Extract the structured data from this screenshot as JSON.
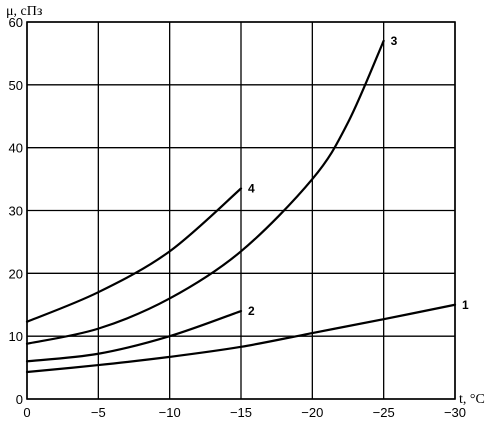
{
  "chart_data": {
    "type": "line",
    "title": "",
    "xlabel": "t, °C",
    "ylabel": "μ, сПз",
    "xlim": [
      0,
      -30
    ],
    "ylim": [
      0,
      60
    ],
    "grid": true,
    "x_ticks": [
      0,
      -5,
      -10,
      -15,
      -20,
      -25,
      -30
    ],
    "x_tick_labels": [
      "0",
      "−5",
      "−10",
      "−15",
      "−20",
      "−25",
      "−30"
    ],
    "y_ticks": [
      0,
      10,
      20,
      30,
      40,
      50,
      60
    ],
    "y_tick_labels": [
      "0",
      "10",
      "20",
      "30",
      "40",
      "50",
      "60"
    ],
    "series": [
      {
        "name": "1",
        "x": [
          0,
          -5,
          -10,
          -15,
          -20,
          -25,
          -30
        ],
        "y": [
          4.3,
          5.4,
          6.7,
          8.3,
          10.5,
          12.7,
          15.0
        ]
      },
      {
        "name": "2",
        "x": [
          0,
          -5,
          -10,
          -15
        ],
        "y": [
          6.0,
          7.2,
          10.0,
          14.0
        ]
      },
      {
        "name": "3",
        "x": [
          0,
          -5,
          -10,
          -15,
          -20,
          -22.5,
          -25
        ],
        "y": [
          8.8,
          11.2,
          16.0,
          23.5,
          35.0,
          44.0,
          57.0
        ]
      },
      {
        "name": "4",
        "x": [
          0,
          -5,
          -10,
          -15
        ],
        "y": [
          12.3,
          17.0,
          23.5,
          33.5
        ]
      }
    ]
  }
}
